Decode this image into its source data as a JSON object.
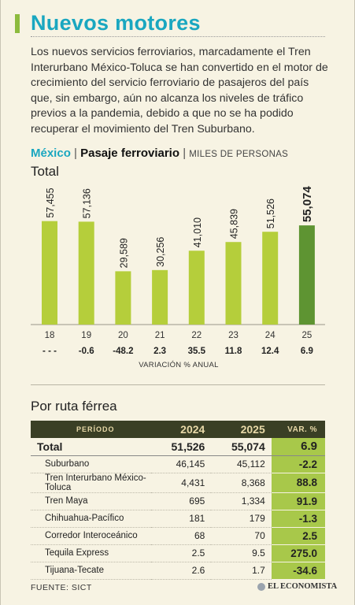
{
  "title": "Nuevos motores",
  "intro": "Los nuevos servicios ferroviarios, marcadamente el Tren Interurbano México-Toluca se han convertido en el motor de crecimiento del servicio ferroviario de pasajeros del país que, sin embargo, aún no alcanza los niveles de tráfico previos a la pandemia, debido a que no se ha podido recuperar el movimiento del Tren Suburbano.",
  "subhead": {
    "geo": "México",
    "sep": "|",
    "main": "Pasaje ferroviario",
    "unit": "MILES DE PERSONAS"
  },
  "total_label": "Total",
  "variation_label": "VARIACIÓN % ANUAL",
  "colors": {
    "bar": "#b5ce3b",
    "bar_highlight": "#5e9432",
    "accent": "#1aa7c0",
    "var_cell": "#a8c84a",
    "header": "#3a3f25"
  },
  "chart_data": {
    "type": "bar",
    "categories": [
      "18",
      "19",
      "20",
      "21",
      "22",
      "23",
      "24",
      "25"
    ],
    "values": [
      57455,
      57136,
      29589,
      30256,
      41010,
      45839,
      51526,
      55074
    ],
    "value_labels": [
      "57,455",
      "57,136",
      "29,589",
      "30,256",
      "41,010",
      "45,839",
      "51,526",
      "55,074"
    ],
    "variation": [
      "- - -",
      "-0.6",
      "-48.2",
      "2.3",
      "35.5",
      "11.8",
      "12.4",
      "6.9"
    ],
    "highlight_index": 7,
    "ylim": [
      0,
      70000
    ]
  },
  "routes": {
    "title": "Por ruta férrea",
    "headers": {
      "period": "PERÍODO",
      "y1": "2024",
      "y2": "2025",
      "var": "VAR. %"
    },
    "total": {
      "name": "Total",
      "y1": "51,526",
      "y2": "55,074",
      "var": "6.9"
    },
    "rows": [
      {
        "name": "Suburbano",
        "y1": "46,145",
        "y2": "45,112",
        "var": "-2.2"
      },
      {
        "name": "Tren Interurbano México-Toluca",
        "y1": "4,431",
        "y2": "8,368",
        "var": "88.8"
      },
      {
        "name": "Tren Maya",
        "y1": "695",
        "y2": "1,334",
        "var": "91.9"
      },
      {
        "name": "Chihuahua-Pacífico",
        "y1": "181",
        "y2": "179",
        "var": "-1.3"
      },
      {
        "name": "Corredor Interoceánico",
        "y1": "68",
        "y2": "70",
        "var": "2.5"
      },
      {
        "name": "Tequila Express",
        "y1": "2.5",
        "y2": "9.5",
        "var": "275.0"
      },
      {
        "name": "Tijuana-Tecate",
        "y1": "2.6",
        "y2": "1.7",
        "var": "-34.6"
      }
    ]
  },
  "source": "FUENTE: SICT",
  "brand": "EL ECONOMISTA"
}
